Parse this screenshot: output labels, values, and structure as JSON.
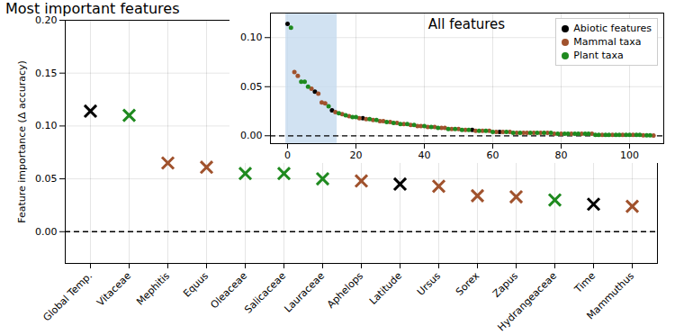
{
  "chart_data": [
    {
      "type": "scatter",
      "title": "Most important features",
      "ylabel": "Feature importance (Δ accuracy)",
      "categories": [
        "Global Temp.",
        "Vitaceae",
        "Mephitis",
        "Equus",
        "Oleaceae",
        "Salicaceae",
        "Lauraceae",
        "Aphelops",
        "Latitude",
        "Ursus",
        "Sorex",
        "Zapus",
        "Hydrangeaceae",
        "Time",
        "Mammuthus"
      ],
      "values": [
        0.114,
        0.11,
        0.065,
        0.061,
        0.055,
        0.055,
        0.05,
        0.048,
        0.045,
        0.043,
        0.034,
        0.033,
        0.03,
        0.026,
        0.024
      ],
      "colors": [
        "#000000",
        "#1f8a1f",
        "#a0522d",
        "#a0522d",
        "#1f8a1f",
        "#1f8a1f",
        "#1f8a1f",
        "#a0522d",
        "#000000",
        "#a0522d",
        "#a0522d",
        "#a0522d",
        "#1f8a1f",
        "#000000",
        "#a0522d"
      ],
      "marker": "x",
      "ylim": [
        -0.03,
        0.2
      ],
      "yticks": [
        {
          "value": 0,
          "label": "0.00"
        },
        {
          "value": 0.05,
          "label": "0.05"
        },
        {
          "value": 0.1,
          "label": "0.10"
        },
        {
          "value": 0.15,
          "label": "0.15"
        },
        {
          "value": 0.2,
          "label": "0.20"
        }
      ],
      "grid": true
    },
    {
      "type": "scatter",
      "title": "All features",
      "series": [
        {
          "name": "Abiotic features",
          "color": "#000000",
          "x": [
            0,
            8,
            13,
            22,
            54,
            62
          ],
          "values": [
            0.114,
            0.045,
            0.026,
            0.018,
            0.006,
            0.004
          ]
        },
        {
          "name": "Mammal taxa",
          "color": "#a0522d",
          "x": [
            2,
            3,
            7,
            9,
            10,
            11,
            14,
            16,
            18,
            21,
            23,
            25,
            27,
            28,
            30,
            32,
            34,
            36,
            38,
            39,
            41,
            43,
            45,
            46,
            48,
            50,
            52,
            55,
            57,
            59,
            61,
            63,
            65,
            67,
            69,
            70,
            72,
            74,
            76,
            78,
            80,
            83,
            86,
            89,
            92,
            95,
            98,
            101,
            104,
            107
          ],
          "values": [
            0.065,
            0.061,
            0.048,
            0.043,
            0.034,
            0.033,
            0.024,
            0.022,
            0.02,
            0.018,
            0.017,
            0.016,
            0.015,
            0.015,
            0.014,
            0.013,
            0.012,
            0.011,
            0.01,
            0.01,
            0.009,
            0.009,
            0.008,
            0.008,
            0.007,
            0.007,
            0.006,
            0.005,
            0.005,
            0.005,
            0.004,
            0.004,
            0.004,
            0.003,
            0.003,
            0.003,
            0.003,
            0.003,
            0.003,
            0.002,
            0.002,
            0.002,
            0.002,
            0.002,
            0.001,
            0.001,
            0.001,
            0.001,
            0.0005,
            0.0003
          ]
        },
        {
          "name": "Plant taxa",
          "color": "#1f8a1f",
          "x": [
            1,
            4,
            5,
            6,
            12,
            15,
            17,
            19,
            20,
            24,
            26,
            29,
            31,
            33,
            35,
            37,
            40,
            42,
            44,
            47,
            49,
            51,
            53,
            56,
            58,
            60,
            64,
            66,
            68,
            71,
            73,
            75,
            77,
            79,
            81,
            82,
            84,
            85,
            87,
            88,
            90,
            91,
            93,
            94,
            96,
            97,
            99,
            100,
            102,
            103,
            105,
            106
          ],
          "values": [
            0.11,
            0.055,
            0.055,
            0.05,
            0.03,
            0.023,
            0.021,
            0.019,
            0.019,
            0.017,
            0.016,
            0.014,
            0.013,
            0.012,
            0.012,
            0.011,
            0.01,
            0.009,
            0.008,
            0.007,
            0.007,
            0.006,
            0.006,
            0.005,
            0.005,
            0.004,
            0.004,
            0.003,
            0.003,
            0.003,
            0.003,
            0.003,
            0.003,
            0.002,
            0.002,
            0.002,
            0.002,
            0.002,
            0.002,
            0.002,
            0.001,
            0.001,
            0.001,
            0.001,
            0.001,
            0.001,
            0.001,
            0.001,
            0.001,
            0.001,
            0.0005,
            0.0005
          ]
        }
      ],
      "marker": "o",
      "xlim": [
        -5,
        110
      ],
      "xticks": [
        0,
        20,
        40,
        60,
        80,
        100
      ],
      "ylim": [
        -0.008,
        0.125
      ],
      "yticks": [
        {
          "value": 0,
          "label": "0.00"
        },
        {
          "value": 0.05,
          "label": "0.05"
        },
        {
          "value": 0.1,
          "label": "0.10"
        }
      ],
      "legend": "upper right",
      "grid": true
    }
  ]
}
